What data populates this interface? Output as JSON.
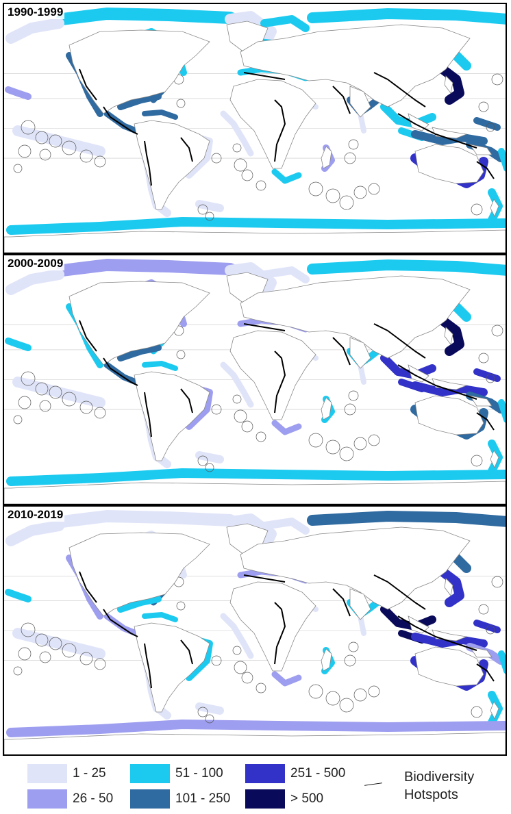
{
  "panels": [
    {
      "title": "1990-1999",
      "fills": {
        "canada_arctic": "#1ccaf0",
        "alaska": "#e0e4f8",
        "greenland": "#e0e4f8",
        "west_na": "#2f6aa0",
        "east_na": "#2f6aa0",
        "gulf": "#2f6aa0",
        "central_am": "#2f6aa0",
        "caribbean": "#2f6aa0",
        "brazil_east": "#e0e4f8",
        "sa_west": "#e0e4f8",
        "patagonia": "#e0e4f8",
        "europe": "#1ccaf0",
        "mediterranean": "#1ccaf0",
        "africa_west": "#e0e4f8",
        "south_africa": "#1ccaf0",
        "madagascar": "#9e9ef0",
        "india": "#2f6aa0",
        "red_sea": "#e0e4f8",
        "russia_arctic": "#1ccaf0",
        "japan": "#0a0a5a",
        "se_asia": "#1ccaf0",
        "indonesia": "#2f6aa0",
        "png": "#2f6aa0",
        "australia": "#3232c8",
        "new_zealand": "#1ccaf0",
        "pacific_islands": "#e0e4f8",
        "antarctica": "#1ccaf0",
        "east_pacific": "#9e9ef0"
      }
    },
    {
      "title": "2000-2009",
      "fills": {
        "canada_arctic": "#9e9ef0",
        "alaska": "#e0e4f8",
        "greenland": "#e0e4f8",
        "west_na": "#1ccaf0",
        "east_na": "#1ccaf0",
        "gulf": "#2f6aa0",
        "central_am": "#2f6aa0",
        "caribbean": "#1ccaf0",
        "brazil_east": "#9e9ef0",
        "sa_west": "#e0e4f8",
        "patagonia": "#e0e4f8",
        "europe": "#e0e4f8",
        "mediterranean": "#9e9ef0",
        "africa_west": "#e0e4f8",
        "south_africa": "#9e9ef0",
        "madagascar": "#1ccaf0",
        "india": "#1ccaf0",
        "red_sea": "#e0e4f8",
        "russia_arctic": "#1ccaf0",
        "japan": "#0a0a5a",
        "se_asia": "#3232c8",
        "indonesia": "#3232c8",
        "png": "#2f6aa0",
        "australia": "#2f6aa0",
        "new_zealand": "#1ccaf0",
        "pacific_islands": "#e0e4f8",
        "antarctica": "#1ccaf0",
        "east_pacific": "#1ccaf0"
      }
    },
    {
      "title": "2010-2019",
      "fills": {
        "canada_arctic": "#e0e4f8",
        "alaska": "#e0e4f8",
        "greenland": "#e0e4f8",
        "west_na": "#9e9ef0",
        "east_na": "#2f6aa0",
        "gulf": "#1ccaf0",
        "central_am": "#9e9ef0",
        "caribbean": "#1ccaf0",
        "brazil_east": "#1ccaf0",
        "sa_west": "#e0e4f8",
        "patagonia": "#e0e4f8",
        "europe": "#e0e4f8",
        "mediterranean": "#9e9ef0",
        "africa_west": "#e0e4f8",
        "south_africa": "#9e9ef0",
        "madagascar": "#1ccaf0",
        "india": "#1ccaf0",
        "red_sea": "#e0e4f8",
        "russia_arctic": "#2f6aa0",
        "japan": "#3232c8",
        "se_asia": "#0a0a5a",
        "indonesia": "#3232c8",
        "png": "#9e9ef0",
        "australia": "#3232c8",
        "new_zealand": "#1ccaf0",
        "pacific_islands": "#e0e4f8",
        "antarctica": "#9e9ef0",
        "east_pacific": "#1ccaf0"
      }
    }
  ],
  "legend": {
    "items": [
      {
        "label": "1 - 25",
        "color": "#e0e4f8"
      },
      {
        "label": "26 - 50",
        "color": "#9e9ef0"
      },
      {
        "label": "51 - 100",
        "color": "#1ccaf0"
      },
      {
        "label": "101 - 250",
        "color": "#2f6aa0"
      },
      {
        "label": "251 - 500",
        "color": "#3232c8"
      },
      {
        "label": "> 500",
        "color": "#0a0a5a"
      }
    ],
    "hotspot_label_line1": "Biodiversity",
    "hotspot_label_line2": "Hotspots"
  }
}
